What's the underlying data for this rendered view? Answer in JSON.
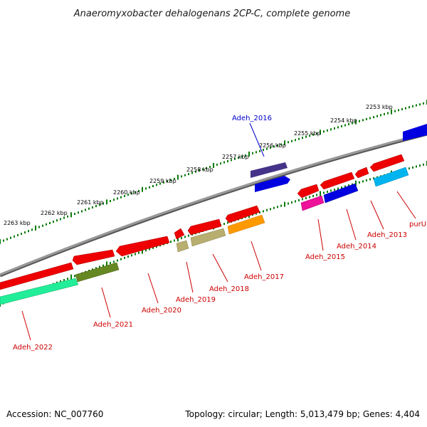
{
  "title": "Anaeromyxobacter dehalogenans 2CP-C, complete genome",
  "footer": {
    "accession": "Accession: NC_007760",
    "summary": "Topology: circular; Length: 5,013,479 bp; Genes: 4,404"
  },
  "scale_labels": [
    "2253 kbp",
    "2254 kbp",
    "2255 kbp",
    "2256 kbp",
    "2257 kbp",
    "2258 kbp",
    "2259 kbp",
    "2260 kbp",
    "2261 kbp",
    "2262 kbp",
    "2263 kbp"
  ],
  "gene_labels": {
    "forward": [
      "Adeh_2016"
    ],
    "reverse": [
      "purU",
      "Adeh_2013",
      "Adeh_2014",
      "Adeh_2015",
      "Adeh_2017",
      "Adeh_2018",
      "Adeh_2019",
      "Adeh_2020",
      "Adeh_2021",
      "Adeh_2022"
    ]
  },
  "colors": {
    "backbone": "#808080",
    "tick": "#0a7a0a",
    "forward_label": "#0000cc",
    "reverse_label": "#cc0000",
    "red_gene": "#ee0000",
    "blue_gene": "#0000e0",
    "purple_gene": "#443388",
    "cyan_gene": "#00b4f0",
    "magenta_gene": "#ee1199",
    "olive_gene": "#b8ae70",
    "orange_gene": "#ff9900",
    "darkolive_gene": "#668822",
    "mint_gene": "#22ee99"
  }
}
